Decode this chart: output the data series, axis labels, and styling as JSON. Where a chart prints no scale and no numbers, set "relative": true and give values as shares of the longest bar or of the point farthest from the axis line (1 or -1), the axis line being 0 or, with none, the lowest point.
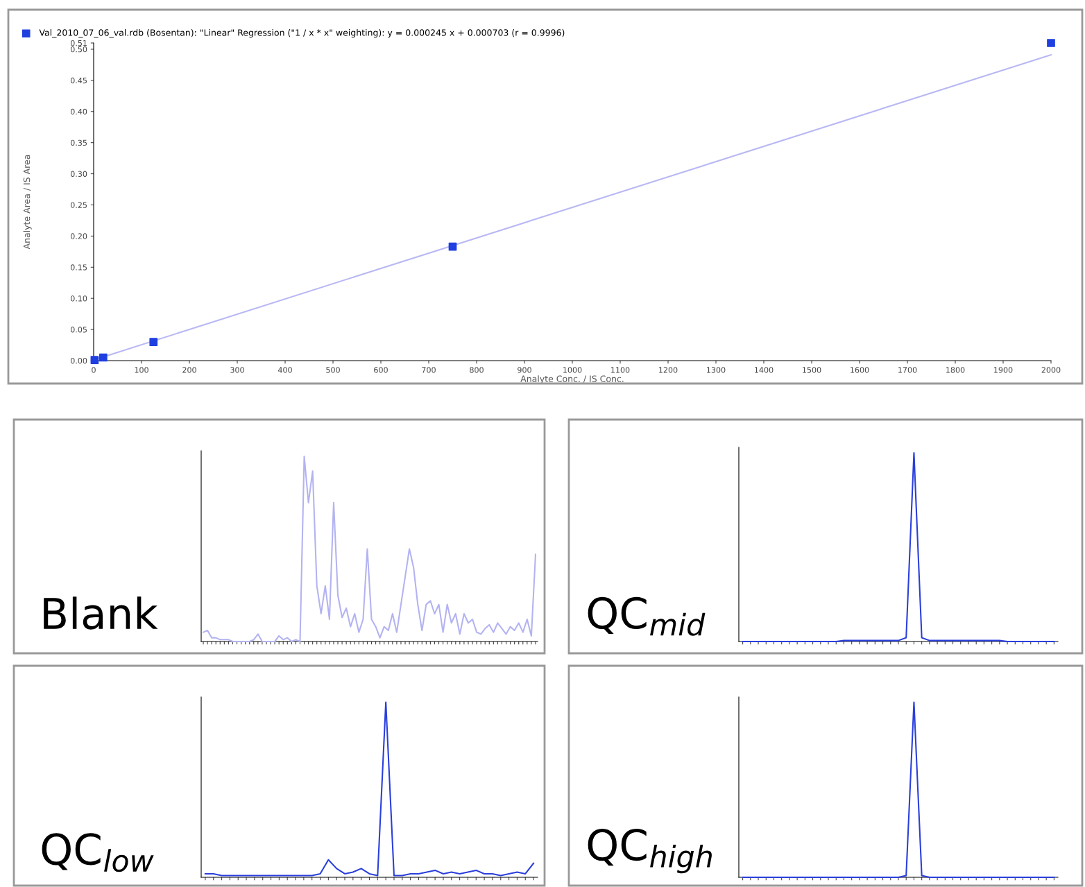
{
  "chart_data": [
    {
      "type": "scatter",
      "xlabel": "Analyte Conc. / IS Conc.",
      "ylabel": "Analyte Area / IS Area",
      "legend": "top",
      "grid": false,
      "xlim": [
        0,
        2000
      ],
      "xticks": [
        0,
        100,
        200,
        300,
        400,
        500,
        600,
        700,
        800,
        900,
        1000,
        1100,
        1200,
        1300,
        1400,
        1500,
        1600,
        1700,
        1800,
        1900,
        2000
      ],
      "ylim": [
        0,
        0.51
      ],
      "yticks": [
        {
          "value": 0,
          "label": "0.00"
        },
        0.05,
        {
          "value": 0.1,
          "label": "0.10"
        },
        0.15,
        {
          "value": 0.2,
          "label": "0.20"
        },
        0.25,
        {
          "value": 0.3,
          "label": "0.30"
        },
        0.35,
        {
          "value": 0.4,
          "label": "0.40"
        },
        0.45,
        {
          "value": 0.5,
          "label": "0.50"
        },
        0.51
      ],
      "series": [
        {
          "name": "Val_2010_07_06_val.rdb (Bosentan): \"Linear\" Regression (\"1 / x * x\" weighting): y = 0.000245 x + 0.000703 (r = 0.9996)",
          "type": "scatter",
          "marker": "square",
          "color": "#1f3fe0",
          "x": [
            2,
            20,
            125,
            750,
            2000
          ],
          "values": [
            0.001,
            0.005,
            0.03,
            0.183,
            0.51
          ]
        },
        {
          "type": "line",
          "marker": "none",
          "color": "#b8b8f4",
          "x": [
            0,
            2000
          ],
          "values": [
            0.001,
            0.491
          ]
        }
      ]
    },
    {
      "type": "line",
      "relative": true,
      "annotations": [
        "Blank"
      ],
      "marker": "none",
      "categories": [
        null,
        null,
        null,
        null,
        null,
        null,
        null,
        null,
        null,
        null,
        null,
        null,
        null,
        null,
        null,
        null,
        null,
        null,
        null,
        null,
        null,
        null,
        null,
        null,
        null,
        null,
        null,
        null,
        null,
        null,
        null,
        null,
        null,
        null,
        null,
        null,
        null,
        null,
        null,
        null,
        null,
        null,
        null,
        null,
        null,
        null,
        null,
        null,
        null,
        null,
        null,
        null,
        null,
        null,
        null,
        null,
        null,
        null,
        null,
        null,
        null,
        null,
        null,
        null,
        null,
        null,
        null,
        null,
        null,
        null,
        null,
        null,
        null,
        null,
        null,
        null,
        null,
        null,
        null,
        null
      ],
      "series": [
        {
          "color": "#b3b3f2",
          "values": [
            0.05,
            0.06,
            0.02,
            0.02,
            0.01,
            0.01,
            0.01,
            0.0,
            0.0,
            0.0,
            0.0,
            0.0,
            0.01,
            0.04,
            0.0,
            0.0,
            0.0,
            0.0,
            0.03,
            0.01,
            0.02,
            0.0,
            0.01,
            0.0,
            1.0,
            0.75,
            0.92,
            0.3,
            0.15,
            0.3,
            0.12,
            0.75,
            0.25,
            0.13,
            0.18,
            0.08,
            0.15,
            0.05,
            0.12,
            0.5,
            0.12,
            0.08,
            0.02,
            0.08,
            0.06,
            0.15,
            0.05,
            0.2,
            0.35,
            0.5,
            0.4,
            0.2,
            0.06,
            0.2,
            0.22,
            0.15,
            0.2,
            0.05,
            0.2,
            0.1,
            0.15,
            0.04,
            0.15,
            0.1,
            0.12,
            0.05,
            0.04,
            0.07,
            0.09,
            0.05,
            0.1,
            0.07,
            0.04,
            0.08,
            0.06,
            0.1,
            0.05,
            0.12,
            0.03,
            0.47
          ]
        }
      ]
    },
    {
      "type": "line",
      "relative": true,
      "annotations": [
        "QC$_{mid}$"
      ],
      "marker": "none",
      "categories": [
        null,
        null,
        null,
        null,
        null,
        null,
        null,
        null,
        null,
        null,
        null,
        null,
        null,
        null,
        null,
        null,
        null,
        null,
        null,
        null,
        null,
        null,
        null,
        null,
        null,
        null,
        null,
        null,
        null,
        null,
        null,
        null,
        null,
        null,
        null,
        null,
        null,
        null,
        null,
        null,
        null
      ],
      "series": [
        {
          "color": "#2a3fdc",
          "values": [
            0,
            0,
            0,
            0,
            0,
            0,
            0,
            0,
            0,
            0,
            0,
            0,
            0,
            0.005,
            0.005,
            0.005,
            0.005,
            0.005,
            0.005,
            0.005,
            0.005,
            0.02,
            1.0,
            0.02,
            0.005,
            0.005,
            0.005,
            0.005,
            0.005,
            0.005,
            0.005,
            0.005,
            0.005,
            0.005,
            0,
            0,
            0,
            0,
            0,
            0,
            0
          ]
        }
      ]
    },
    {
      "type": "line",
      "relative": true,
      "annotations": [
        "QC$_{low}$"
      ],
      "marker": "none",
      "categories": [
        null,
        null,
        null,
        null,
        null,
        null,
        null,
        null,
        null,
        null,
        null,
        null,
        null,
        null,
        null,
        null,
        null,
        null,
        null,
        null,
        null,
        null,
        null,
        null,
        null,
        null,
        null,
        null,
        null,
        null,
        null,
        null,
        null,
        null,
        null,
        null,
        null,
        null,
        null,
        null,
        null
      ],
      "series": [
        {
          "color": "#2a3fdc",
          "values": [
            0.02,
            0.02,
            0.01,
            0.01,
            0.01,
            0.01,
            0.01,
            0.01,
            0.01,
            0.01,
            0.01,
            0.01,
            0.01,
            0.01,
            0.02,
            0.1,
            0.05,
            0.02,
            0.03,
            0.05,
            0.02,
            0.01,
            1.0,
            0.01,
            0.01,
            0.02,
            0.02,
            0.03,
            0.04,
            0.02,
            0.03,
            0.02,
            0.03,
            0.04,
            0.02,
            0.02,
            0.01,
            0.02,
            0.03,
            0.02,
            0.08
          ]
        }
      ]
    },
    {
      "type": "line",
      "relative": true,
      "annotations": [
        "QC$_{high}$"
      ],
      "marker": "none",
      "categories": [
        null,
        null,
        null,
        null,
        null,
        null,
        null,
        null,
        null,
        null,
        null,
        null,
        null,
        null,
        null,
        null,
        null,
        null,
        null,
        null,
        null,
        null,
        null,
        null,
        null,
        null,
        null,
        null,
        null,
        null,
        null,
        null,
        null,
        null,
        null,
        null,
        null,
        null,
        null,
        null,
        null
      ],
      "series": [
        {
          "color": "#2a3fdc",
          "values": [
            0,
            0,
            0,
            0,
            0,
            0,
            0,
            0,
            0,
            0,
            0,
            0,
            0,
            0,
            0,
            0,
            0,
            0,
            0,
            0,
            0,
            0.01,
            1.0,
            0.01,
            0,
            0,
            0,
            0,
            0,
            0,
            0,
            0,
            0,
            0,
            0,
            0,
            0,
            0,
            0,
            0,
            0
          ]
        }
      ]
    }
  ]
}
